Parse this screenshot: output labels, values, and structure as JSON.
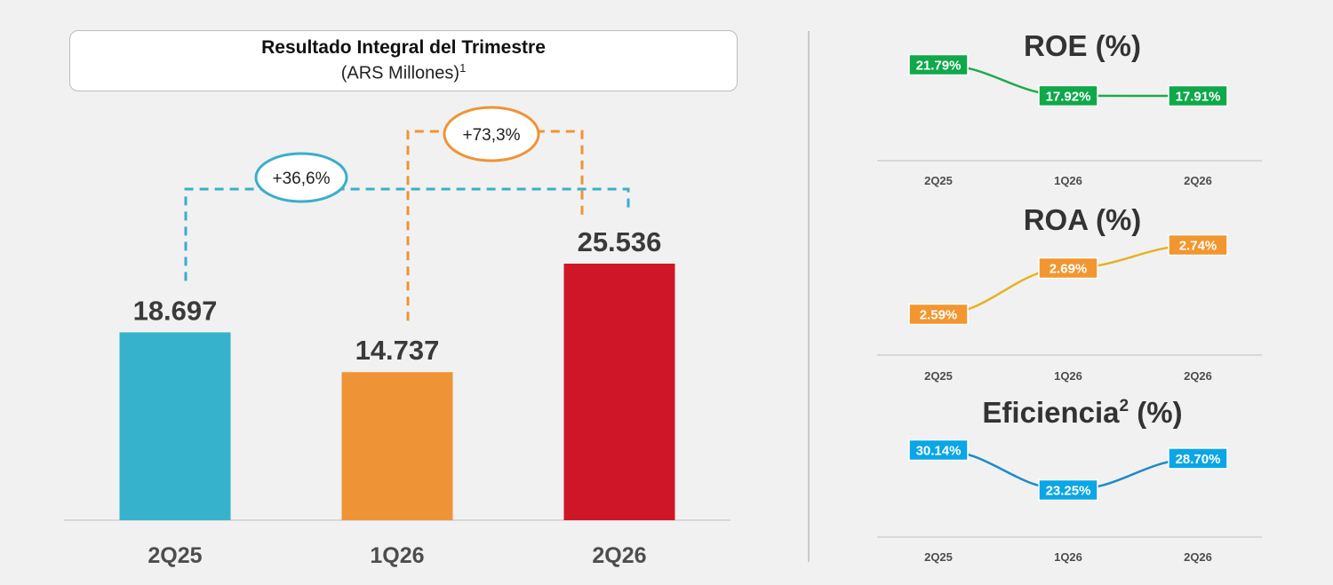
{
  "main_chart": {
    "title": "Resultado Integral del Trimestre",
    "subtitle": "(ARS Millones)",
    "subtitle_note": "1",
    "chart_data": {
      "type": "bar",
      "categories": [
        "2Q25",
        "1Q26",
        "2Q26"
      ],
      "values": [
        18697,
        14737,
        25536
      ],
      "value_labels": [
        "18.697",
        "14.737",
        "25.536"
      ],
      "colors": [
        "#36b2cc",
        "#ee9436",
        "#ce1628"
      ],
      "comparisons": [
        {
          "from": "2Q25",
          "to": "2Q26",
          "label": "+36,6%",
          "color": "#3aaecb"
        },
        {
          "from": "1Q26",
          "to": "2Q26",
          "label": "+73,3%",
          "color": "#ee9436"
        }
      ]
    }
  },
  "side_charts": [
    {
      "title": "ROE (%)",
      "superscript": "",
      "title_suffix": "",
      "color": "#0fa84a",
      "line_color": "#22a84f",
      "chart_data": {
        "type": "line",
        "categories": [
          "2Q25",
          "1Q26",
          "2Q26"
        ],
        "values": [
          21.79,
          17.92,
          17.91
        ],
        "value_labels": [
          "21.79%",
          "17.92%",
          "17.91%"
        ]
      }
    },
    {
      "title": "ROA (%)",
      "superscript": "",
      "title_suffix": "",
      "color": "#f29630",
      "line_color": "#e8b220",
      "chart_data": {
        "type": "line",
        "categories": [
          "2Q25",
          "1Q26",
          "2Q26"
        ],
        "values": [
          2.59,
          2.69,
          2.74
        ],
        "value_labels": [
          "2.59%",
          "2.69%",
          "2.74%"
        ]
      }
    },
    {
      "title": "Eficiencia",
      "superscript": "2",
      "title_suffix": " (%)",
      "color": "#0aa6e6",
      "line_color": "#1a8cc8",
      "chart_data": {
        "type": "line",
        "categories": [
          "2Q25",
          "1Q26",
          "2Q26"
        ],
        "values": [
          30.14,
          23.25,
          28.7
        ],
        "value_labels": [
          "30.14%",
          "23.25%",
          "28.70%"
        ]
      }
    }
  ]
}
